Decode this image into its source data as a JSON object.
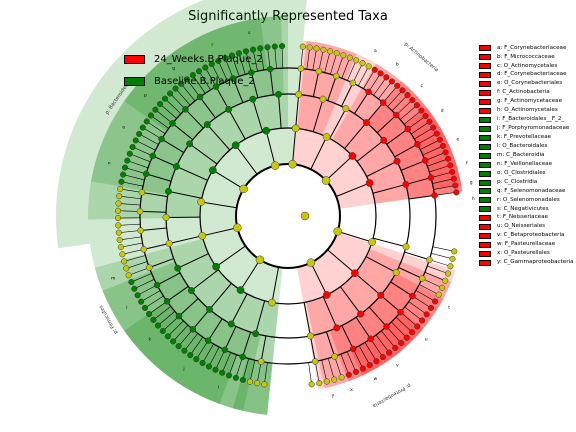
{
  "title": "Significantly Represented Taxa",
  "colors": {
    "enriched_24_weeks": "#ff0000",
    "enriched_baseline": "#008000",
    "not_significant": "#c8c80a",
    "red_shade": "#ff0000",
    "green_shade": "#008000"
  },
  "groups": [
    {
      "name": "24_Weeks.B.Plaque_2",
      "color": "#ff0000"
    },
    {
      "name": "Baseline.B.Plaque_2",
      "color": "#008000"
    }
  ],
  "clades": [
    {
      "label": "a: F_Corynebacteriaceae",
      "color": "#ff0000"
    },
    {
      "label": "b: F_Micrococcaceae",
      "color": "#ff0000"
    },
    {
      "label": "c: O_Actinomycetales",
      "color": "#ff0000"
    },
    {
      "label": "d: F_Corynebacteriaceae",
      "color": "#ff0000"
    },
    {
      "label": "e: O_Corynebacteriales",
      "color": "#ff0000"
    },
    {
      "label": "f: C_Actinobacteria",
      "color": "#ff0000"
    },
    {
      "label": "g: F_Actinomycetaceae",
      "color": "#ff0000"
    },
    {
      "label": "h: O_Actinomycetales",
      "color": "#ff0000"
    },
    {
      "label": "i: F_Bacteroidales__F_2_",
      "color": "#008000"
    },
    {
      "label": "j: F_Porphyromonadaceae",
      "color": "#008000"
    },
    {
      "label": "k: F_Prevotellaceae",
      "color": "#008000"
    },
    {
      "label": "l: O_Bacteroidales",
      "color": "#008000"
    },
    {
      "label": "m: C_Bacteroidia",
      "color": "#008000"
    },
    {
      "label": "n: F_Veillonellaceae",
      "color": "#008000"
    },
    {
      "label": "o: O_Clostridiales",
      "color": "#008000"
    },
    {
      "label": "p: C_Clostridia",
      "color": "#008000"
    },
    {
      "label": "q: F_Selenomonadaceae",
      "color": "#008000"
    },
    {
      "label": "r: O_Selenomonadales",
      "color": "#008000"
    },
    {
      "label": "s: C_Negativicutes",
      "color": "#008000"
    },
    {
      "label": "t: F_Neisseriaceae",
      "color": "#ff0000"
    },
    {
      "label": "u: O_Neisseriales",
      "color": "#ff0000"
    },
    {
      "label": "v: C_Betaproteobacteria",
      "color": "#ff0000"
    },
    {
      "label": "w: F_Pasteurellaceae",
      "color": "#ff0000"
    },
    {
      "label": "x: O_Pasteurellales",
      "color": "#ff0000"
    },
    {
      "label": "y: C_Gammaproteobacteria",
      "color": "#ff0000"
    }
  ],
  "phylum_labels": [
    {
      "text": "p: Actinobacteria"
    },
    {
      "text": "p: Proteobacteria"
    },
    {
      "text": "p: Firmicutes"
    },
    {
      "text": "p: Bacteroidetes"
    }
  ]
}
